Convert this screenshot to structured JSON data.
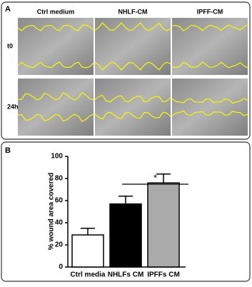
{
  "panel_a": {
    "label": "A",
    "columns": [
      "Ctrl medium",
      "NHLF-CM",
      "IPFF-CM"
    ],
    "rows": [
      "t0",
      "24h"
    ]
  },
  "chart_data": {
    "type": "bar",
    "panel_label": "B",
    "y_label": "% wound area covered",
    "categories": [
      "Ctrl media",
      "NHLFs CM",
      "IPFFs CM"
    ],
    "values": [
      29,
      57,
      76
    ],
    "errors": [
      6,
      7,
      8
    ],
    "colors": [
      "#ffffff",
      "#000000",
      "#aaaaaa"
    ],
    "ylim": [
      0,
      100
    ],
    "yticks": [
      0,
      20,
      40,
      60,
      80,
      100
    ],
    "annotation": "*"
  }
}
